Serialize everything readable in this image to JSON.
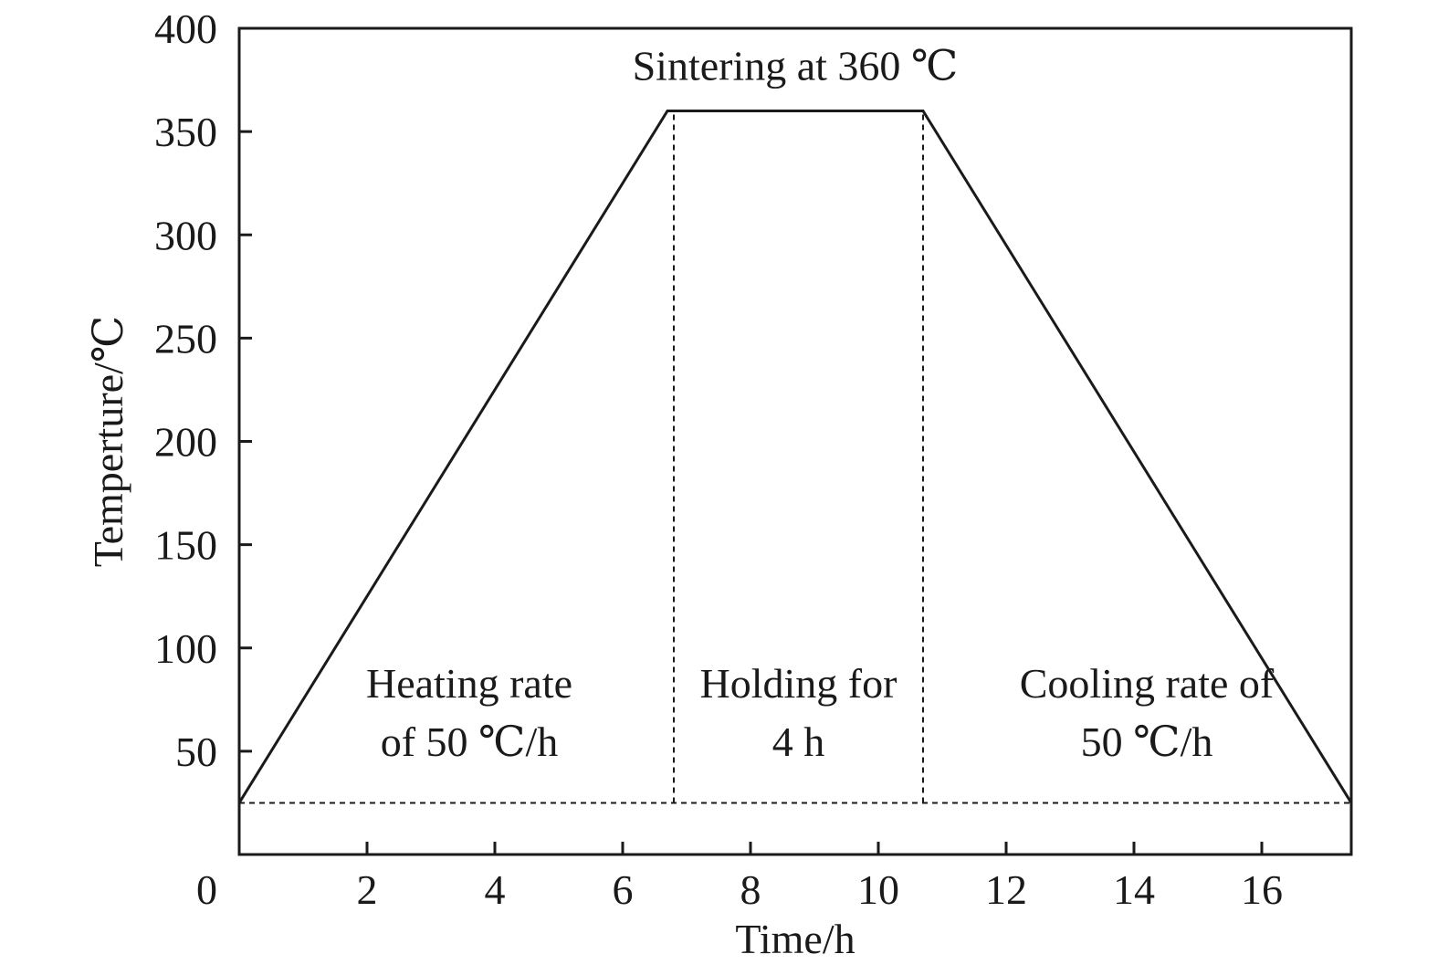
{
  "chart_data": {
    "type": "line",
    "title": "",
    "xlabel": "Time/h",
    "ylabel": "Temperture/℃",
    "xlim": [
      0,
      17.4
    ],
    "ylim": [
      0,
      400
    ],
    "xticks": [
      2,
      4,
      6,
      8,
      10,
      12,
      14,
      16
    ],
    "yticks": [
      50,
      100,
      150,
      200,
      250,
      300,
      350,
      400
    ],
    "origin_label": "0",
    "grid": false,
    "legend": "none",
    "series": [
      {
        "x": [
          0,
          6.7,
          10.7,
          17.4
        ],
        "y": [
          25,
          360,
          360,
          25
        ],
        "style": "solid",
        "color": "#1a1a1a"
      }
    ],
    "guides": [
      {
        "orientation": "horizontal",
        "y": 25,
        "x_from": 0,
        "x_to": 17.4,
        "style": "dashed"
      },
      {
        "orientation": "vertical",
        "x": 6.8,
        "y_from": 25,
        "y_to": 360,
        "style": "dashed"
      },
      {
        "orientation": "vertical",
        "x": 10.7,
        "y_from": 25,
        "y_to": 360,
        "style": "dashed"
      }
    ],
    "annotations": [
      {
        "id": "sintering",
        "lines": [
          "Sintering at 360 ℃"
        ],
        "x": 8.7,
        "y": 375
      },
      {
        "id": "heating",
        "lines": [
          "Heating rate",
          "of 50 ℃/h"
        ],
        "x": 3.6,
        "y": 76
      },
      {
        "id": "holding",
        "lines": [
          "Holding for",
          "4 h"
        ],
        "x": 8.75,
        "y": 76
      },
      {
        "id": "cooling",
        "lines": [
          "Cooling rate of",
          "50 ℃/h"
        ],
        "x": 14.2,
        "y": 76
      }
    ]
  }
}
